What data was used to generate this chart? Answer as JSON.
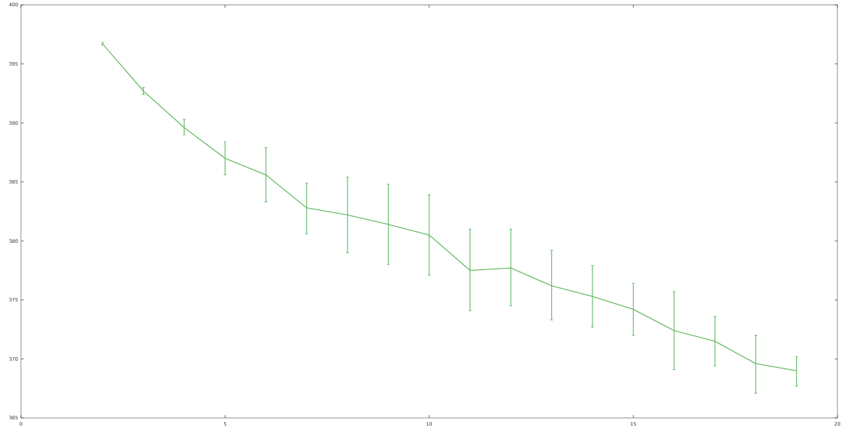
{
  "chart_data": {
    "type": "line",
    "x": [
      2,
      3,
      4,
      5,
      6,
      7,
      8,
      9,
      10,
      11,
      12,
      13,
      14,
      15,
      16,
      17,
      18,
      19
    ],
    "series": [
      {
        "color": "#66bb66",
        "values": [
          396.7,
          392.7,
          389.6,
          387.0,
          385.6,
          382.8,
          382.2,
          381.4,
          380.5,
          377.5,
          377.7,
          376.2,
          375.3,
          374.2,
          372.4,
          371.5,
          369.6,
          369.0
        ],
        "errors": [
          [
            396.6,
            396.8
          ],
          [
            392.4,
            393.0
          ],
          [
            389.0,
            390.3
          ],
          [
            385.6,
            388.4
          ],
          [
            383.3,
            387.9
          ],
          [
            380.6,
            384.9
          ],
          [
            379.0,
            385.4
          ],
          [
            378.0,
            384.8
          ],
          [
            377.1,
            383.9
          ],
          [
            374.1,
            381.0
          ],
          [
            374.5,
            381.0
          ],
          [
            373.3,
            379.2
          ],
          [
            372.7,
            377.9
          ],
          [
            372.0,
            376.4
          ],
          [
            369.1,
            375.7
          ],
          [
            369.4,
            373.6
          ],
          [
            367.1,
            372.0
          ],
          [
            367.7,
            370.2
          ]
        ]
      }
    ],
    "xlim": [
      0,
      20
    ],
    "xticks": [
      0,
      5,
      10,
      15,
      20
    ],
    "ylim": [
      365,
      400
    ],
    "yticks": [
      365,
      370,
      375,
      380,
      385,
      390,
      395,
      400
    ],
    "grid": false,
    "marker": "none",
    "line_style": "solid"
  }
}
